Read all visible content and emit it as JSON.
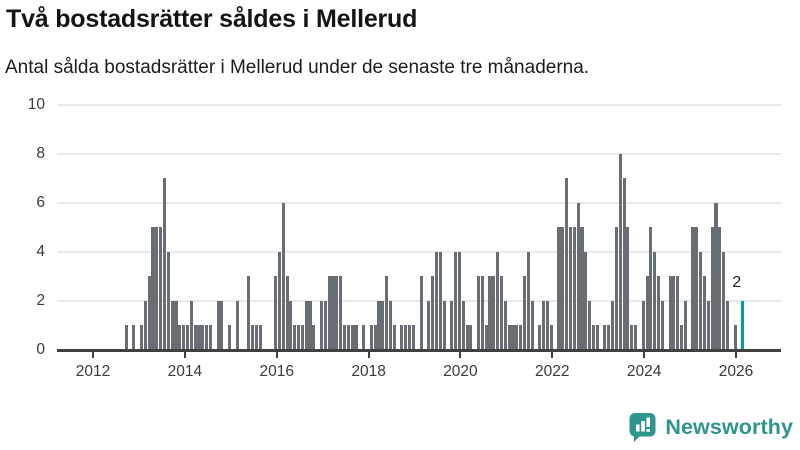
{
  "title": "Två bostadsrätter såldes i Mellerud",
  "subtitle": "Antal sålda bostadsrätter i Mellerud under de senaste tre månaderna.",
  "annotation": {
    "label": "2"
  },
  "logo": {
    "text": "Newsworthy",
    "icon": "bar-chart-speech-bubble-icon"
  },
  "colors": {
    "bar": "#696E74",
    "highlight": "#00A19C",
    "axis": "#404040",
    "grid": "#E9E9E9",
    "tick_text": "#3a3a3a",
    "logo_teal": "#2F968E",
    "text": "#141414"
  },
  "chart_data": {
    "type": "bar",
    "title": "Två bostadsrätter såldes i Mellerud",
    "subtitle": "Antal sålda bostadsrätter i Mellerud under de senaste tre månaderna.",
    "xlabel": "",
    "ylabel": "",
    "x_start": "2012-01",
    "x_end": "2026-02",
    "x_tick_labels": [
      "2012",
      "2014",
      "2016",
      "2018",
      "2020",
      "2022",
      "2024",
      "2026"
    ],
    "y_ticks": [
      0,
      2,
      4,
      6,
      8,
      10
    ],
    "ylim": [
      0,
      10
    ],
    "grid": "horizontal",
    "legend": "none",
    "values": [
      0,
      0,
      0,
      0,
      0,
      0,
      0,
      0,
      1,
      0,
      1,
      0,
      1,
      2,
      3,
      5,
      5,
      5,
      7,
      4,
      2,
      2,
      1,
      1,
      1,
      2,
      1,
      1,
      1,
      1,
      1,
      0,
      2,
      2,
      0,
      1,
      0,
      2,
      0,
      0,
      3,
      1,
      1,
      1,
      0,
      0,
      0,
      3,
      4,
      6,
      3,
      2,
      1,
      1,
      1,
      2,
      2,
      1,
      0,
      2,
      2,
      3,
      3,
      3,
      3,
      1,
      1,
      1,
      1,
      0,
      1,
      0,
      1,
      1,
      2,
      2,
      3,
      2,
      1,
      0,
      1,
      1,
      1,
      1,
      0,
      3,
      0,
      2,
      3,
      4,
      4,
      2,
      0,
      2,
      4,
      4,
      2,
      1,
      1,
      0,
      3,
      3,
      1,
      3,
      3,
      4,
      3,
      2,
      1,
      1,
      1,
      1,
      3,
      4,
      2,
      0,
      1,
      2,
      2,
      1,
      0,
      5,
      5,
      7,
      5,
      5,
      6,
      5,
      4,
      2,
      1,
      1,
      0,
      1,
      1,
      2,
      5,
      8,
      7,
      5,
      1,
      1,
      0,
      2,
      3,
      5,
      4,
      3,
      2,
      0,
      3,
      3,
      3,
      1,
      2,
      0,
      5,
      5,
      4,
      3,
      2,
      5,
      6,
      5,
      4,
      2,
      0,
      1,
      0,
      2
    ],
    "highlight_index": 169,
    "highlight_value": 2,
    "highlight_label": "2"
  }
}
